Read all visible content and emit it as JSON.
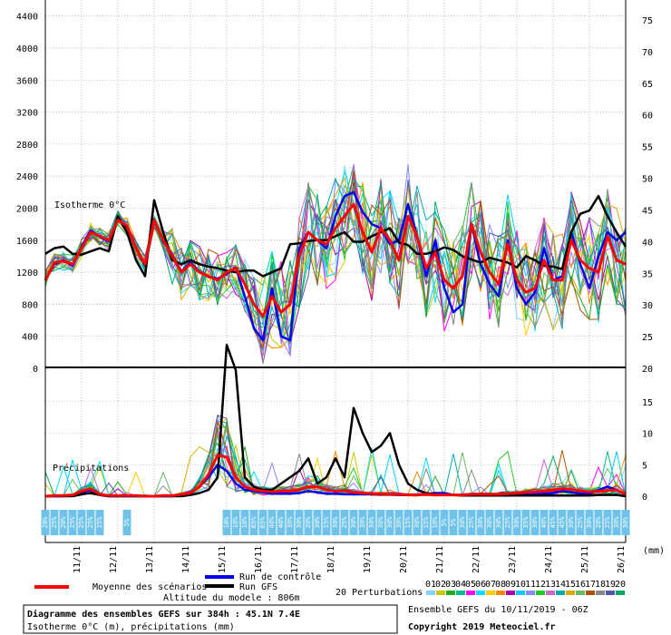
{
  "chart_data": {
    "type": "line",
    "left_axis_ticks": [
      "4400",
      "4000",
      "3600",
      "3200",
      "2800",
      "2400",
      "2000",
      "1600",
      "1200",
      "800",
      "400",
      "0"
    ],
    "right_axis_ticks": [
      "75",
      "70",
      "65",
      "60",
      "55",
      "50",
      "45",
      "40",
      "35",
      "30",
      "25",
      "20",
      "15",
      "10",
      "5",
      "0"
    ],
    "x_ticks": [
      "11/11",
      "12/11",
      "13/11",
      "14/11",
      "15/11",
      "16/11",
      "17/11",
      "18/11",
      "19/11",
      "20/11",
      "21/11",
      "22/11",
      "23/11",
      "24/11",
      "25/11",
      "26/11"
    ],
    "unit_label": "(mm)",
    "isotherm_label": "Isotherme 0°C",
    "precip_label": "Précipitations",
    "ylim_isotherm": [
      0,
      4600
    ],
    "ylim_precip": [
      0,
      20
    ],
    "x_steps": 64,
    "series": [
      {
        "name": "Moyenne des scénarios",
        "color": "#ff0000",
        "panel": "isotherm",
        "values": [
          1100,
          1320,
          1340,
          1300,
          1500,
          1700,
          1650,
          1600,
          1850,
          1780,
          1500,
          1300,
          1850,
          1600,
          1400,
          1200,
          1300,
          1200,
          1150,
          1100,
          1200,
          1250,
          1050,
          800,
          650,
          900,
          700,
          800,
          1400,
          1700,
          1600,
          1550,
          1750,
          1900,
          2050,
          1700,
          1450,
          1750,
          1600,
          1350,
          1900,
          1650,
          1250,
          1450,
          1100,
          1000,
          1150,
          1800,
          1450,
          1200,
          1050,
          1550,
          1100,
          950,
          1000,
          1350,
          1100,
          1100,
          1600,
          1350,
          1250,
          1200,
          1650,
          1350,
          1300
        ]
      },
      {
        "name": "Run GFS",
        "color": "#000000",
        "panel": "isotherm",
        "values": [
          1430,
          1500,
          1520,
          1430,
          1420,
          1460,
          1500,
          1460,
          1900,
          1700,
          1350,
          1150,
          2100,
          1700,
          1350,
          1300,
          1350,
          1300,
          1270,
          1250,
          1220,
          1200,
          1220,
          1220,
          1150,
          1200,
          1250,
          1550,
          1560,
          1590,
          1600,
          1600,
          1650,
          1700,
          1580,
          1580,
          1650,
          1700,
          1750,
          1570,
          1540,
          1430,
          1430,
          1460,
          1510,
          1480,
          1400,
          1360,
          1320,
          1380,
          1350,
          1320,
          1260,
          1400,
          1350,
          1280,
          1270,
          1240,
          1700,
          1930,
          1970,
          2150,
          1900,
          1700,
          1520
        ]
      },
      {
        "name": "Run de contrôle",
        "color": "#0000ee",
        "panel": "isotherm",
        "values": [
          1100,
          1300,
          1350,
          1280,
          1520,
          1720,
          1640,
          1590,
          1860,
          1760,
          1500,
          1280,
          1860,
          1580,
          1420,
          1210,
          1320,
          1210,
          1140,
          1120,
          1180,
          1260,
          900,
          500,
          350,
          1000,
          400,
          350,
          1500,
          1700,
          1600,
          1500,
          1900,
          2150,
          2200,
          1950,
          1800,
          1750,
          1550,
          1600,
          2050,
          1650,
          1150,
          1600,
          1000,
          700,
          800,
          1800,
          1300,
          1050,
          900,
          1600,
          1000,
          800,
          950,
          1500,
          1100,
          1150,
          1700,
          1300,
          1000,
          1400,
          1700,
          1600,
          1700
        ]
      },
      {
        "name": "Moyenne des scénarios (précip.)",
        "color": "#ff0000",
        "panel": "precip",
        "values": [
          0,
          0.1,
          0.1,
          0.2,
          0.8,
          1.2,
          0.3,
          0.1,
          0.1,
          0.1,
          0.1,
          0,
          0,
          0.1,
          0.1,
          0.3,
          0.5,
          1.5,
          3.5,
          6.5,
          6.2,
          3,
          1.5,
          1,
          0.8,
          0.7,
          0.8,
          0.8,
          1,
          1.5,
          1.5,
          1,
          0.8,
          0.9,
          0.6,
          0.5,
          0.4,
          0.4,
          0.3,
          0.3,
          0.2,
          0.2,
          0.3,
          0.2,
          0.2,
          0.2,
          0.2,
          0.3,
          0.3,
          0.3,
          0.3,
          0.4,
          0.5,
          0.6,
          0.7,
          0.8,
          1,
          1.2,
          1.1,
          0.8,
          0.7,
          0.8,
          0.9,
          1,
          0.3
        ]
      },
      {
        "name": "Run GFS (précip.)",
        "color": "#000000",
        "panel": "precip",
        "values": [
          0,
          0,
          0,
          0,
          0.3,
          0.5,
          0.2,
          0,
          0,
          0,
          0,
          0,
          0,
          0,
          0,
          0,
          0.2,
          0.5,
          1,
          3,
          24,
          20,
          3,
          1.5,
          1,
          1,
          2,
          3,
          4,
          6,
          2,
          3,
          6,
          3,
          14,
          10,
          7,
          8,
          10,
          5,
          2,
          1,
          0.5,
          0.3,
          0.2,
          0.2,
          0.1,
          0.1,
          0.1,
          0.1,
          0.1,
          0.1,
          0.1,
          0.1,
          0.1,
          0.1,
          0.1,
          0.1,
          0.1,
          0.1,
          0.1,
          0.2,
          0.2,
          0.2,
          0
        ]
      },
      {
        "name": "Run de contrôle (précip.)",
        "color": "#0000ee",
        "panel": "precip",
        "values": [
          0,
          0,
          0,
          0.2,
          0.6,
          1,
          0.2,
          0,
          0,
          0,
          0,
          0,
          0,
          0,
          0,
          0.2,
          0.5,
          1.5,
          3,
          5,
          4,
          2,
          1,
          0.8,
          0.6,
          0.4,
          0.4,
          0.4,
          0.5,
          0.8,
          0.6,
          0.4,
          0.4,
          0.3,
          0.3,
          0.3,
          0.3,
          0.3,
          0.3,
          0.2,
          0.2,
          0.2,
          0.3,
          0.5,
          0.5,
          0.2,
          0.1,
          0.1,
          0.1,
          0.1,
          0.1,
          0.1,
          0.2,
          0.3,
          0.3,
          0.4,
          0.5,
          0.8,
          0.6,
          0.4,
          0.4,
          1,
          1.5,
          1,
          0.2
        ]
      }
    ],
    "perturbations": {
      "count": 20,
      "colors": [
        "#7fd4ff",
        "#c8c800",
        "#22aa22",
        "#00bb88",
        "#ff00ff",
        "#00ddff",
        "#ffcc00",
        "#ff8800",
        "#aa00aa",
        "#00ccff",
        "#8888ff",
        "#22cc22",
        "#cc66cc",
        "#00aaaa",
        "#ddaa00",
        "#66bb66",
        "#aa5500",
        "#888888",
        "#5555aa",
        "#00aa66"
      ],
      "labels": [
        "01",
        "02",
        "03",
        "04",
        "05",
        "06",
        "07",
        "08",
        "09",
        "10",
        "11",
        "12",
        "13",
        "14",
        "15",
        "16",
        "17",
        "18",
        "19",
        "20"
      ]
    },
    "probabilities": [
      "20%",
      "25%",
      "20%",
      "25%",
      "25%",
      "25%",
      "25%",
      "",
      "",
      "5%",
      "",
      "",
      "",
      "",
      "",
      "",
      "",
      "",
      "",
      "",
      "10%",
      "10%",
      "10%",
      "65%",
      "65%",
      "40%",
      "40%",
      "30%",
      "30%",
      "20%",
      "30%",
      "15%",
      "30%",
      "25%",
      "30%",
      "30%",
      "30%",
      "30%",
      "30%",
      "30%",
      "15%",
      "30%",
      "15%",
      "10%",
      "5%",
      "5%",
      "30%",
      "25%",
      "30%",
      "30%",
      "30%",
      "25%",
      "30%",
      "35%",
      "30%",
      "40%",
      "45%",
      "45%",
      "30%",
      "25%",
      "30%",
      "20%",
      "25%",
      "30%",
      "30%"
    ],
    "legend": {
      "mean": "Moyenne des scénarios",
      "control": "Run de contrôle",
      "gfs": "Run GFS",
      "perturbations": "20 Perturbations",
      "altitude": "Altitude du modele : 806m"
    }
  },
  "footer": {
    "title_line1": "Diagramme des ensembles GEFS sur 384h : 45.1N 7.4E",
    "title_line2": "Isotherme 0°C (m), précipitations (mm)",
    "run_info": "Ensemble GEFS du 10/11/2019 - 06Z",
    "copyright": "Copyright 2019 Meteociel.fr"
  }
}
